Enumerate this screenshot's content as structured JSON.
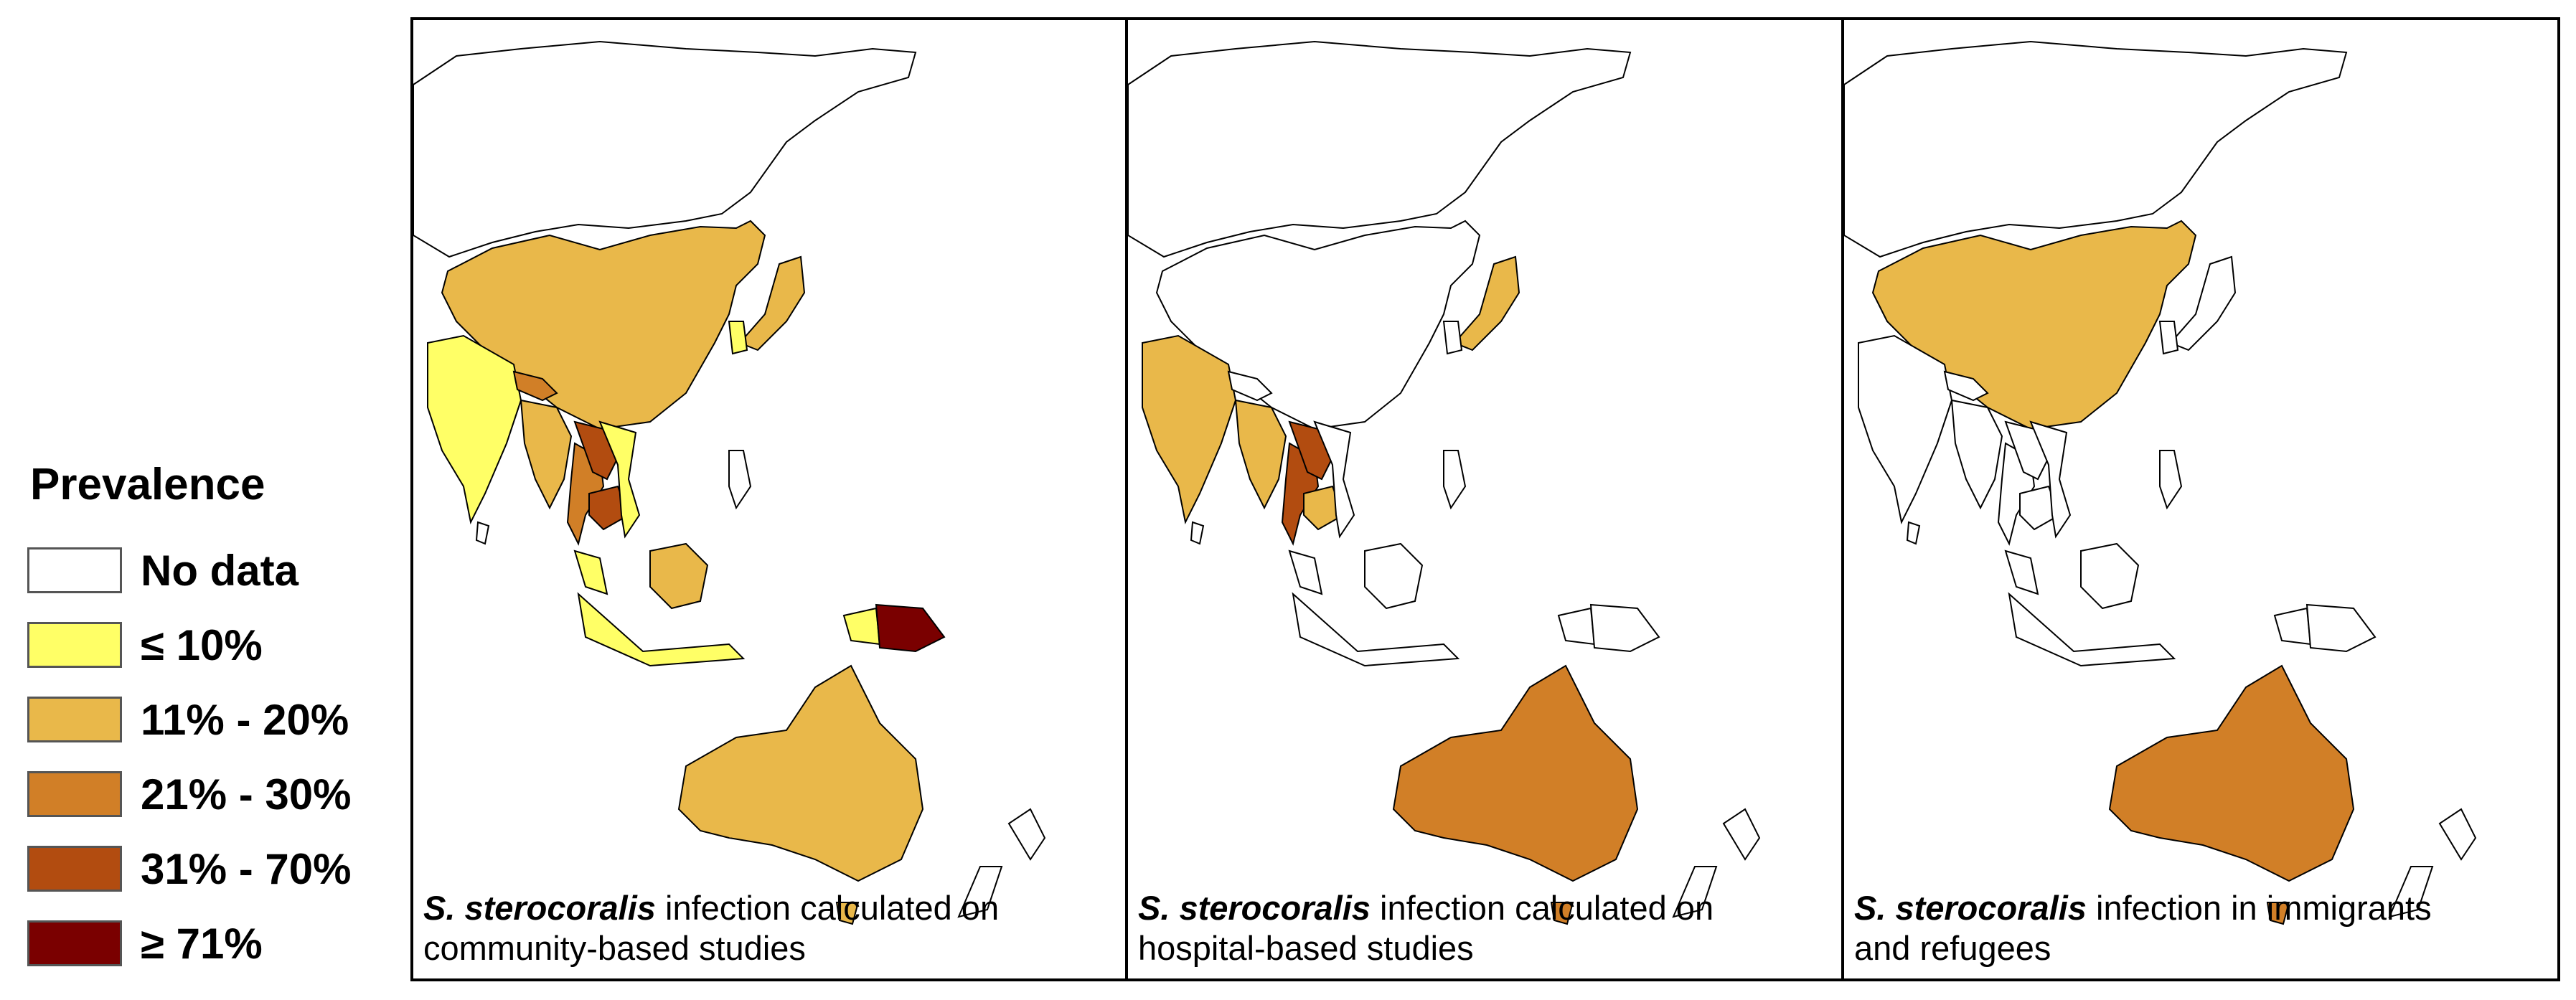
{
  "legend": {
    "title": "Prevalence",
    "items": [
      {
        "label": "No data",
        "color": "#ffffff"
      },
      {
        "label": "≤ 10%",
        "color": "#ffff66"
      },
      {
        "label": "11% - 20%",
        "color": "#e9b84a"
      },
      {
        "label": "21% - 30%",
        "color": "#d17f27"
      },
      {
        "label": "31% - 70%",
        "color": "#b24c10"
      },
      {
        "label": "≥ 71%",
        "color": "#7a0000"
      }
    ]
  },
  "panels": [
    {
      "species": "S. sterocoralis",
      "caption_line1": "infection calculated on",
      "caption_line2": "community-based studies",
      "regions": {
        "china": "#e9b84a",
        "india": "#ffff66",
        "nepal": "#d17f27",
        "myanmar": "#e9b84a",
        "thailand": "#d17f27",
        "laos": "#b24c10",
        "cambodia": "#b24c10",
        "vietnam": "#ffff66",
        "malaysia": "#ffff66",
        "indonesia": "#ffff66",
        "borneo": "#e9b84a",
        "papua": "#ffff66",
        "png": "#7a0000",
        "japan": "#e9b84a",
        "korea": "#ffff66",
        "australia": "#e9b84a",
        "tasmania": "#e9b84a"
      }
    },
    {
      "species": "S. sterocoralis",
      "caption_line1": "infection calculated on",
      "caption_line2": "hospital-based studies",
      "regions": {
        "china": "#ffffff",
        "india": "#e9b84a",
        "nepal": "#ffffff",
        "myanmar": "#e9b84a",
        "thailand": "#b24c10",
        "laos": "#b24c10",
        "cambodia": "#e9b84a",
        "vietnam": "#ffffff",
        "malaysia": "#ffffff",
        "indonesia": "#ffffff",
        "borneo": "#ffffff",
        "papua": "#ffffff",
        "png": "#ffffff",
        "japan": "#e9b84a",
        "korea": "#ffffff",
        "australia": "#d17f27",
        "tasmania": "#d17f27"
      }
    },
    {
      "species": "S. sterocoralis",
      "caption_line1": "infection in immigrants",
      "caption_line2": "and refugees",
      "regions": {
        "china": "#e9b84a",
        "india": "#ffffff",
        "nepal": "#ffffff",
        "myanmar": "#ffffff",
        "thailand": "#ffffff",
        "laos": "#ffffff",
        "cambodia": "#ffffff",
        "vietnam": "#ffffff",
        "malaysia": "#ffffff",
        "indonesia": "#ffffff",
        "borneo": "#ffffff",
        "papua": "#ffffff",
        "png": "#ffffff",
        "japan": "#ffffff",
        "korea": "#ffffff",
        "australia": "#d17f27",
        "tasmania": "#d17f27"
      }
    }
  ]
}
